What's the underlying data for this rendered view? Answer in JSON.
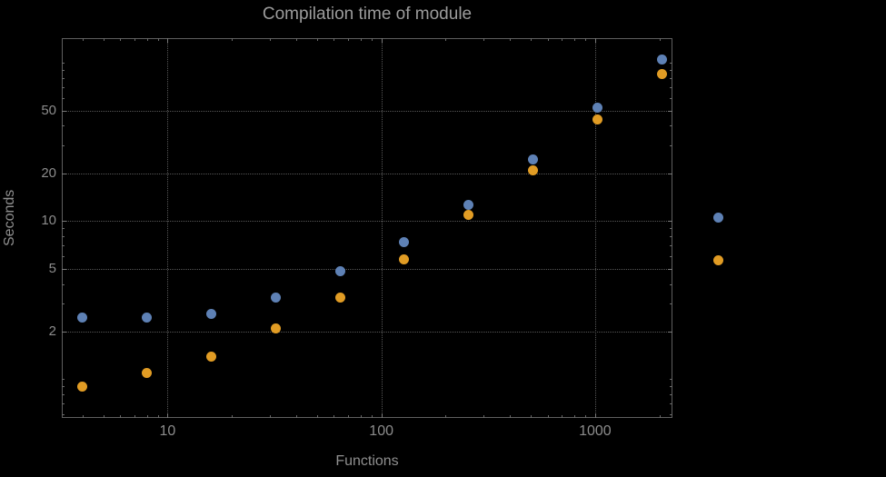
{
  "title": "Compilation time of module",
  "chart_data": {
    "type": "scatter",
    "title": "Compilation time of module",
    "xlabel": "Functions",
    "ylabel": "Seconds",
    "x_axis": {
      "scale": "log",
      "range": [
        3.2,
        2300
      ],
      "ticks": [
        10,
        100,
        1000
      ],
      "tick_labels": [
        "10",
        "100",
        "1000"
      ]
    },
    "y_axis": {
      "scale": "log",
      "range": [
        0.57,
        143
      ],
      "ticks": [
        2,
        5,
        10,
        20,
        50
      ],
      "tick_labels": [
        "2",
        "5",
        "10",
        "20",
        "50"
      ]
    },
    "grid": "dotted major gridlines",
    "x": [
      4,
      8,
      16,
      32,
      64,
      128,
      256,
      512,
      1024,
      2048
    ],
    "series": [
      {
        "name": "series-1-blue",
        "color": "#5e81b5",
        "values": [
          2.45,
          2.45,
          2.6,
          3.3,
          4.8,
          7.4,
          12.7,
          24.5,
          52,
          105
        ]
      },
      {
        "name": "series-2-orange",
        "color": "#e19c24",
        "values": [
          0.9,
          1.1,
          1.4,
          2.1,
          3.3,
          5.7,
          11,
          21,
          44,
          85
        ]
      }
    ],
    "legend": {
      "position": "right-of-frame",
      "markers": [
        {
          "series": "series-1-blue",
          "color": "#5e81b5"
        },
        {
          "series": "series-2-orange",
          "color": "#e19c24"
        }
      ]
    }
  },
  "colors": {
    "background": "#000000",
    "frame": "#5f5f5f",
    "gridline": "#575757",
    "title_text": "#9c9c9c",
    "tick_text": "#8c8c8c",
    "axis_label_text": "#8f8f8f",
    "series1": "#5e81b5",
    "series2": "#e19c24"
  }
}
